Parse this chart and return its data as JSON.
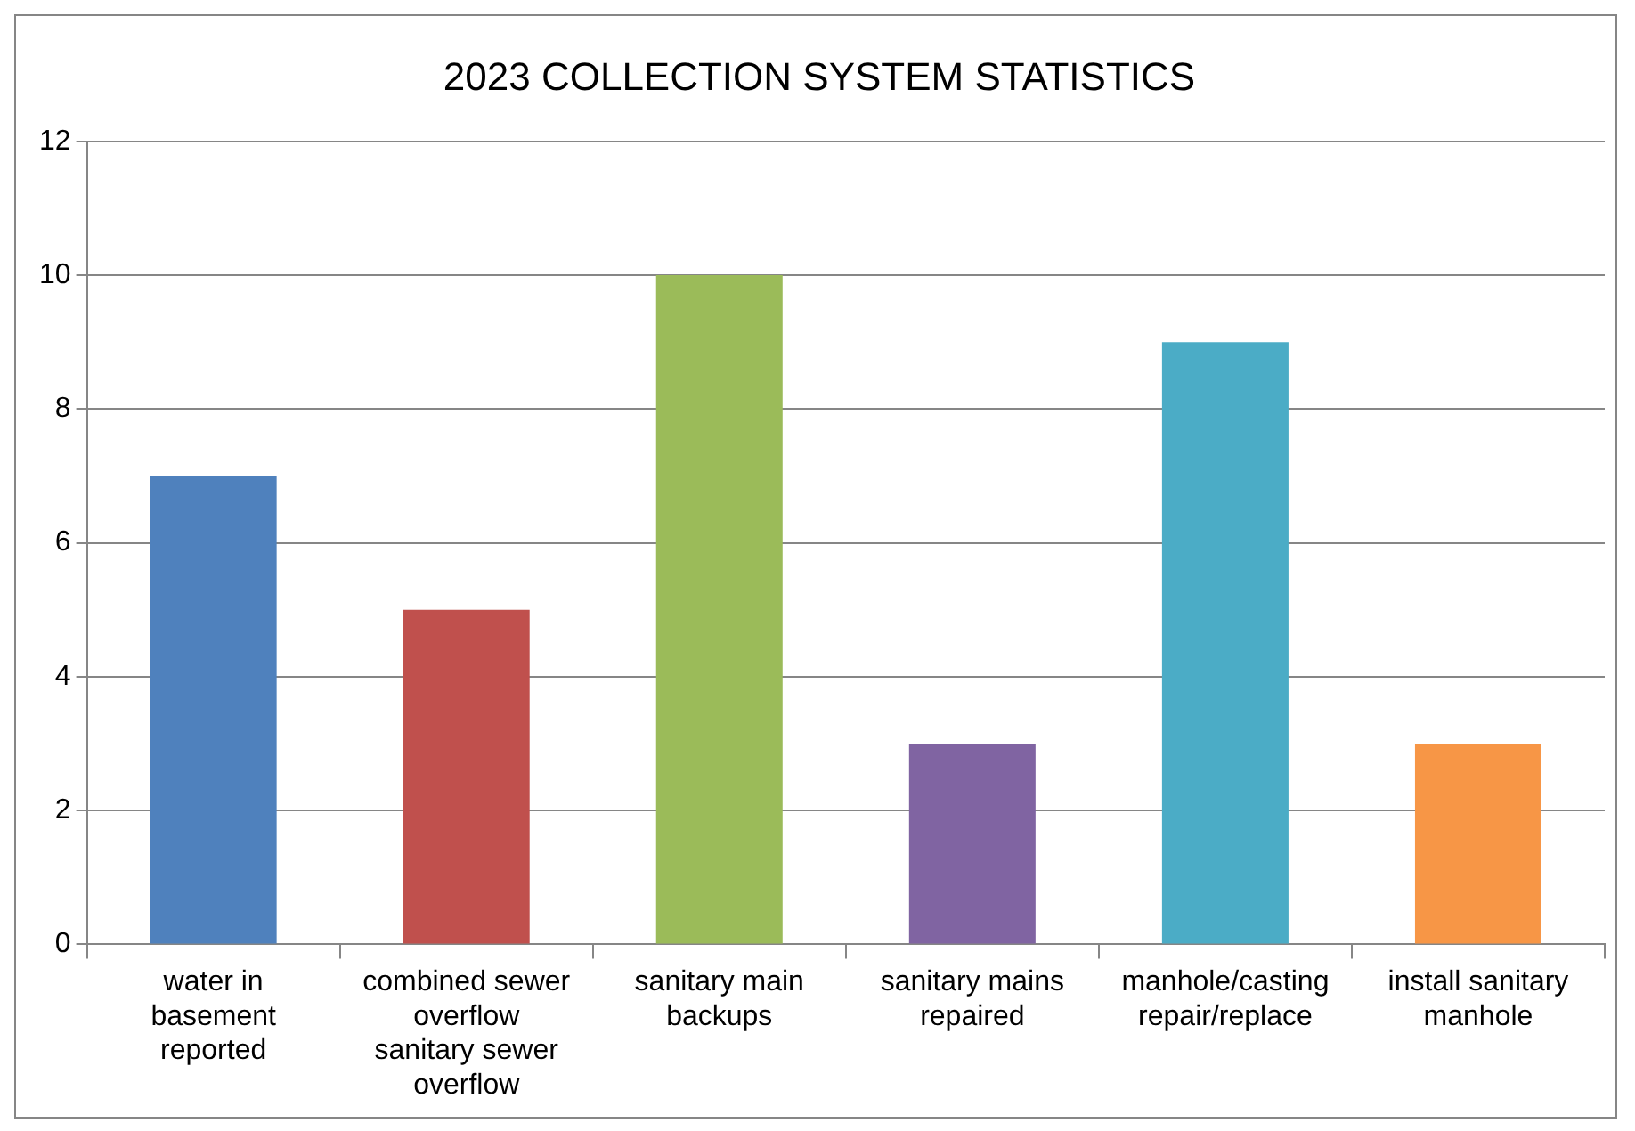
{
  "chart_data": {
    "type": "bar",
    "title": "2023 COLLECTION SYSTEM STATISTICS",
    "categories": [
      "water in basement reported",
      "combined sewer overflow sanitary sewer overflow",
      "sanitary main backups",
      "sanitary mains repaired",
      "manhole/casting repair/replace",
      "install sanitary manhole"
    ],
    "values": [
      7,
      5,
      10,
      3,
      9,
      3
    ],
    "colors": [
      "#4f81bd",
      "#c0504d",
      "#9bbb59",
      "#8064a2",
      "#4bacc6",
      "#f79646"
    ],
    "ylim": [
      0,
      12
    ],
    "yticks": [
      0,
      2,
      4,
      6,
      8,
      10,
      12
    ],
    "grid": "y",
    "legend": false
  }
}
